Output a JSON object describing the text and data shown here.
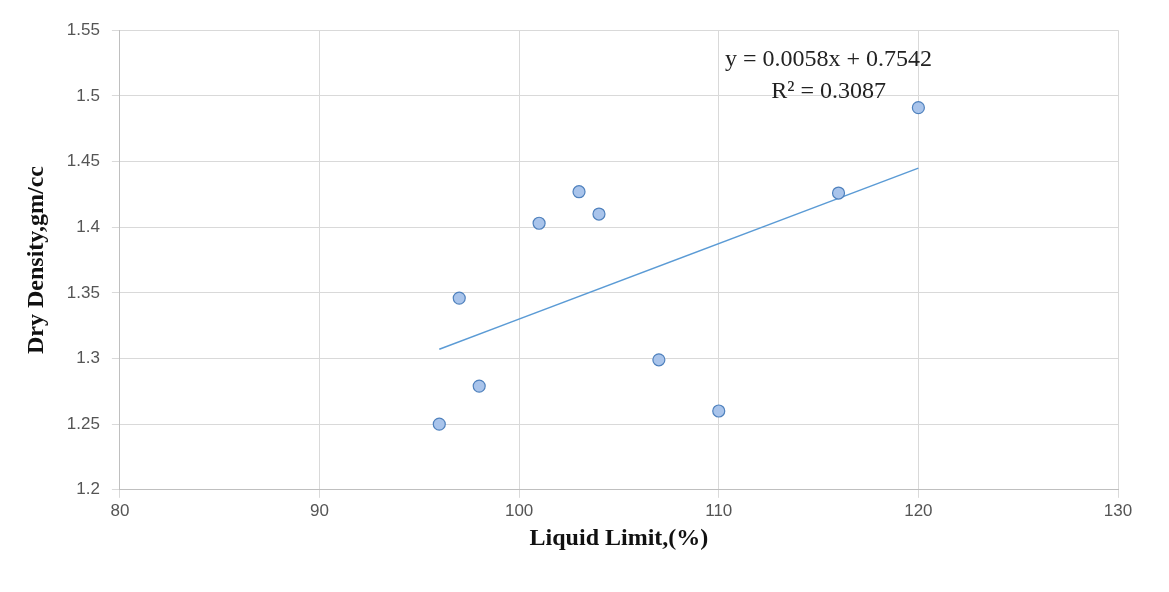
{
  "chart_data": {
    "type": "scatter",
    "xlabel": "Liquid Limit,(%)",
    "ylabel": "Dry Density,gm/cc",
    "annotations": [
      "y = 0.0058x + 0.7542",
      "R² = 0.3087"
    ],
    "xlim": [
      80,
      130
    ],
    "xticks": [
      80,
      90,
      100,
      110,
      120,
      130
    ],
    "ylim": [
      1.2,
      1.55
    ],
    "yticks": [
      1.2,
      1.25,
      1.3,
      1.35,
      1.4,
      1.45,
      1.5,
      1.55
    ],
    "grid": true,
    "marker": "circle",
    "legend": false,
    "series": [
      {
        "color": "#a9c4eb",
        "x": [
          96,
          97,
          98,
          101,
          103,
          104,
          107,
          110,
          116,
          120
        ],
        "values": [
          1.25,
          1.346,
          1.279,
          1.403,
          1.427,
          1.41,
          1.299,
          1.26,
          1.426,
          1.491
        ]
      },
      {
        "type": "line",
        "marker": "none",
        "color": "#5b9bd5",
        "x": [
          96,
          120
        ],
        "values": [
          1.307,
          1.445
        ]
      }
    ]
  }
}
